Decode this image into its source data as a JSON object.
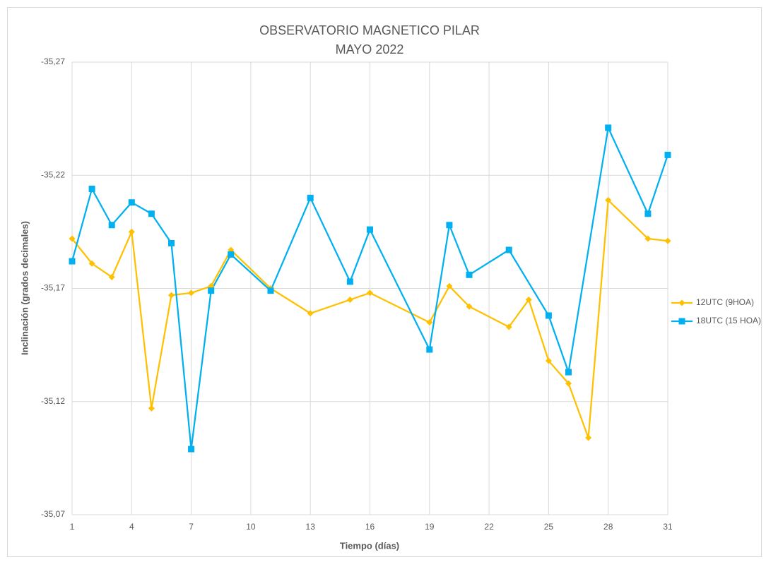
{
  "chart_data": {
    "type": "line",
    "title": [
      "OBSERVATORIO MAGNETICO PILAR",
      "MAYO 2022"
    ],
    "x_label": "Tiempo (días)",
    "y_label": "Inclinación (grados decimales)",
    "xlim": [
      1,
      31
    ],
    "xticks": [
      1,
      4,
      7,
      10,
      13,
      16,
      19,
      22,
      25,
      28,
      31
    ],
    "ylim": [
      -35.07,
      -35.27
    ],
    "yticks": [
      {
        "value": -35.27,
        "label": "-35,27"
      },
      {
        "value": -35.22,
        "label": "-35,22"
      },
      {
        "value": -35.17,
        "label": "-35,17"
      },
      {
        "value": -35.12,
        "label": "-35,12"
      },
      {
        "value": -35.07,
        "label": "-35,07"
      }
    ],
    "grid": true,
    "legend": "right",
    "series": [
      {
        "name": "12UTC (9HOA)",
        "color": "#FFC000",
        "marker": "diamond",
        "x": [
          1,
          2,
          3,
          4,
          5,
          6,
          7,
          8,
          9,
          11,
          13,
          15,
          16,
          19,
          20,
          21,
          23,
          24,
          25,
          26,
          27,
          28,
          30,
          31
        ],
        "values": [
          -35.192,
          -35.181,
          -35.175,
          -35.195,
          -35.117,
          -35.167,
          -35.168,
          -35.171,
          -35.187,
          -35.17,
          -35.159,
          -35.165,
          -35.168,
          -35.155,
          -35.171,
          -35.162,
          -35.153,
          -35.165,
          -35.138,
          -35.128,
          -35.104,
          -35.209,
          -35.192,
          -35.191
        ]
      },
      {
        "name": "18UTC (15 HOA)",
        "color": "#00B0F0",
        "marker": "square",
        "x": [
          1,
          2,
          3,
          4,
          5,
          6,
          7,
          8,
          9,
          11,
          13,
          15,
          16,
          19,
          20,
          21,
          23,
          25,
          26,
          28,
          30,
          31
        ],
        "values": [
          -35.182,
          -35.214,
          -35.198,
          -35.208,
          -35.203,
          -35.19,
          -35.099,
          -35.169,
          -35.185,
          -35.169,
          -35.21,
          -35.173,
          -35.196,
          -35.143,
          -35.198,
          -35.176,
          -35.187,
          -35.158,
          -35.133,
          -35.241,
          -35.203,
          -35.229
        ]
      }
    ]
  }
}
